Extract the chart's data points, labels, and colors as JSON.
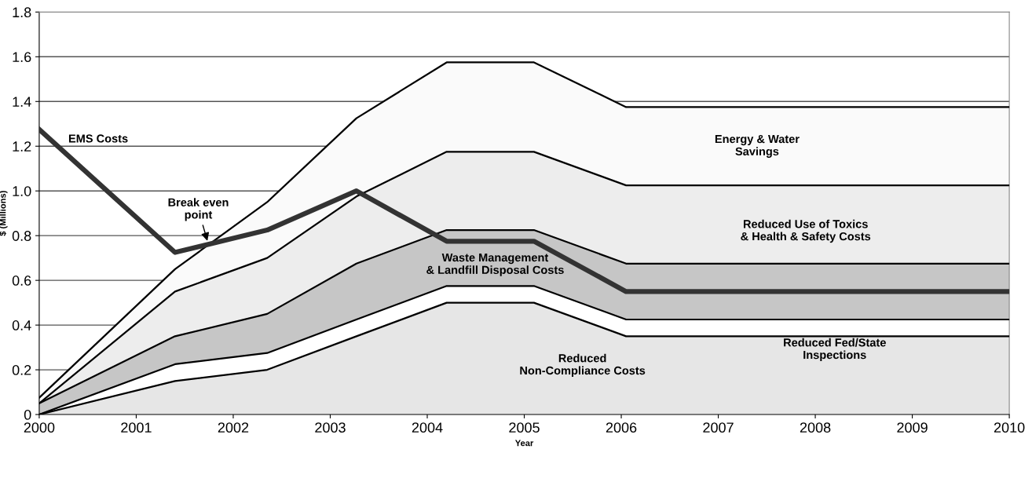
{
  "chart_data": {
    "type": "area",
    "stacked": true,
    "xlabel": "Year",
    "ylabel": "$ (Millions)",
    "x": [
      2000,
      2001.4,
      2002.35,
      2003.27,
      2004.2,
      2005.1,
      2006.05,
      2010
    ],
    "xlim": [
      2000,
      2010
    ],
    "xticks": [
      2000,
      2001,
      2002,
      2003,
      2004,
      2005,
      2006,
      2007,
      2008,
      2009,
      2010
    ],
    "ylim": [
      0,
      1.8
    ],
    "yticks": [
      0,
      0.2,
      0.4,
      0.6,
      0.8,
      {
        "value": 1.0,
        "label": "1.0"
      },
      1.2,
      1.4,
      1.6,
      1.8
    ],
    "grid": "y",
    "series": [
      {
        "name": "Reduced\nNon-Compliance Costs",
        "color": "#e6e6e6",
        "values": [
          0,
          0.15,
          0.2,
          0.35,
          0.5,
          0.5,
          0.35,
          0.35
        ]
      },
      {
        "name": "Reduced Fed/State\nInspections",
        "color": "#ffffff",
        "values": [
          0,
          0.075,
          0.075,
          0.075,
          0.075,
          0.075,
          0.075,
          0.075
        ]
      },
      {
        "name": "Waste Management\n& Landfill Disposal Costs",
        "color": "#c6c6c6",
        "values": [
          0.05,
          0.125,
          0.175,
          0.25,
          0.25,
          0.25,
          0.25,
          0.25
        ]
      },
      {
        "name": "Reduced Use of Toxics\n& Health & Safety Costs",
        "color": "#ededed",
        "values": [
          0,
          0.2,
          0.25,
          0.3,
          0.35,
          0.35,
          0.35,
          0.35
        ]
      },
      {
        "name": "Energy & Water\nSavings",
        "color": "#fafafa",
        "values": [
          0.025,
          0.1,
          0.25,
          0.35,
          0.4,
          0.4,
          0.35,
          0.35
        ]
      },
      {
        "name": "EMS Costs",
        "type": "line",
        "color": "#333333",
        "values": [
          1.275,
          0.725,
          0.825,
          1.0,
          0.775,
          0.775,
          0.55,
          0.55
        ]
      }
    ],
    "annotations": [
      {
        "text": "Break even\npoint",
        "x": 2001.74,
        "y": 0.767
      }
    ]
  }
}
